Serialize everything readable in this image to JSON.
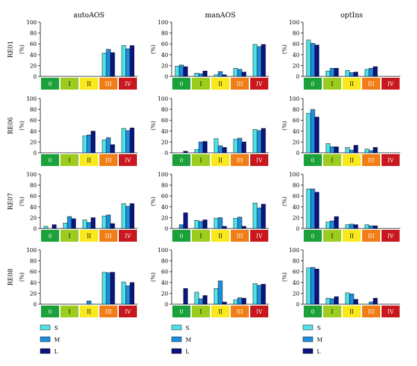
{
  "chart_data": {
    "type": "bar",
    "column_titles": [
      "autoAOS",
      "manAOS",
      "optIns"
    ],
    "row_labels": [
      "RE01",
      "RE06",
      "RE07",
      "RE08"
    ],
    "ylabel": "(%)",
    "ylim": [
      0,
      100
    ],
    "yticks": [
      0,
      20,
      40,
      60,
      80,
      100
    ],
    "categories": [
      "0",
      "I",
      "II",
      "III",
      "IV"
    ],
    "category_colors": [
      "#1aa13a",
      "#9ccd1e",
      "#f9e91c",
      "#f07d16",
      "#c8171d"
    ],
    "category_text_colors": [
      "#ffffff",
      "#000000",
      "#000000",
      "#ffffff",
      "#ffffff"
    ],
    "series_names": [
      "S",
      "M",
      "L"
    ],
    "series_colors": [
      "#4fe3e8",
      "#1d8fe0",
      "#0a1580"
    ],
    "panels": [
      [
        {
          "S": [
            0,
            0,
            0,
            43,
            57
          ],
          "M": [
            0,
            0,
            0,
            50,
            51
          ],
          "L": [
            0,
            0,
            0,
            44,
            57
          ]
        },
        {
          "S": [
            19,
            6,
            3,
            15,
            59
          ],
          "M": [
            21,
            5,
            9,
            13,
            55
          ],
          "L": [
            18,
            10,
            3,
            8,
            59
          ]
        },
        {
          "S": [
            67,
            10,
            11,
            13,
            0
          ],
          "M": [
            61,
            15,
            7,
            15,
            0
          ],
          "L": [
            58,
            15,
            8,
            18,
            0
          ]
        }
      ],
      [
        {
          "S": [
            0,
            0,
            31,
            24,
            45
          ],
          "M": [
            0,
            0,
            33,
            28,
            41
          ],
          "L": [
            0,
            0,
            40,
            15,
            46
          ]
        },
        {
          "S": [
            0,
            6,
            26,
            25,
            43
          ],
          "M": [
            0,
            20,
            13,
            27,
            41
          ],
          "L": [
            3,
            21,
            10,
            20,
            45
          ]
        },
        {
          "S": [
            73,
            17,
            10,
            7,
            0
          ],
          "M": [
            80,
            11,
            5,
            4,
            0
          ],
          "L": [
            66,
            11,
            14,
            10,
            0
          ]
        }
      ],
      [
        {
          "S": [
            4,
            10,
            16,
            23,
            46
          ],
          "M": [
            0,
            22,
            11,
            25,
            41
          ],
          "L": [
            7,
            18,
            20,
            9,
            46
          ]
        },
        {
          "S": [
            0,
            15,
            19,
            19,
            47
          ],
          "M": [
            7,
            13,
            20,
            21,
            38
          ],
          "L": [
            29,
            16,
            4,
            4,
            45
          ]
        },
        {
          "S": [
            73,
            12,
            7,
            7,
            0
          ],
          "M": [
            73,
            14,
            8,
            5,
            0
          ],
          "L": [
            67,
            22,
            7,
            5,
            0
          ]
        }
      ],
      [
        {
          "S": [
            0,
            0,
            0,
            59,
            41
          ],
          "M": [
            0,
            0,
            6,
            58,
            34
          ],
          "L": [
            0,
            0,
            0,
            59,
            40
          ]
        },
        {
          "S": [
            0,
            22,
            29,
            8,
            38
          ],
          "M": [
            0,
            10,
            43,
            12,
            35
          ],
          "L": [
            29,
            16,
            4,
            11,
            37
          ]
        },
        {
          "S": [
            67,
            11,
            21,
            0,
            0
          ],
          "M": [
            68,
            10,
            19,
            4,
            0
          ],
          "L": [
            65,
            14,
            9,
            11,
            0
          ]
        }
      ]
    ]
  }
}
